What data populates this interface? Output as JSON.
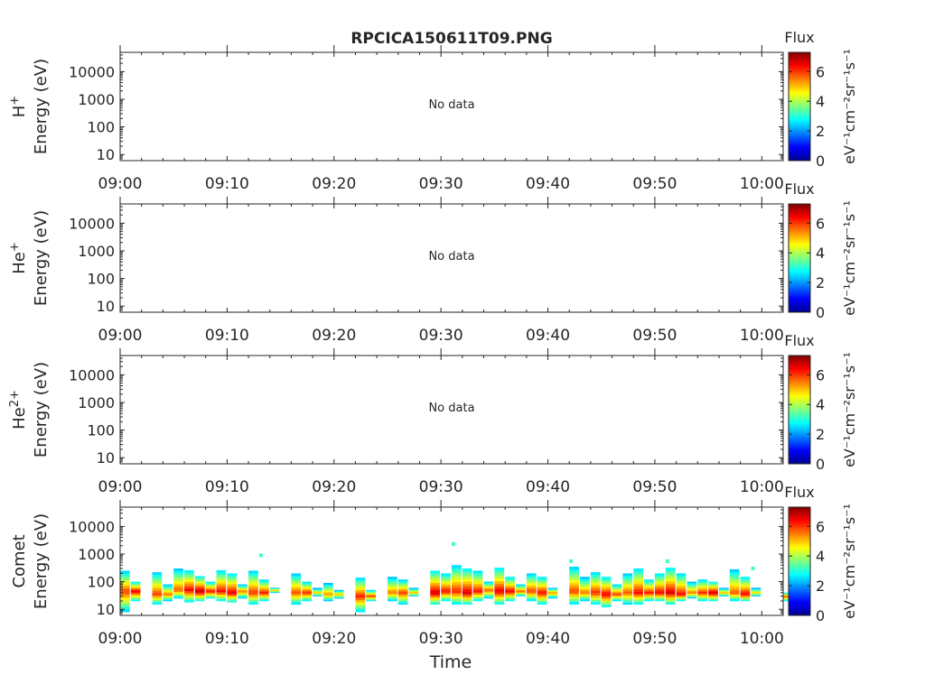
{
  "title": "RPCICA150611T09.PNG",
  "no_data_label": "No data",
  "xlabel": "Time",
  "colorbar": {
    "label": "Flux",
    "ticks": [
      "0",
      "2",
      "4",
      "6"
    ],
    "range": [
      0,
      7.3
    ]
  },
  "chart_data": [
    {
      "type": "heatmap",
      "title": "RPCICA150611T09.PNG",
      "species": "H",
      "species_sup": "+",
      "ylabel": "Energy (eV)",
      "yscale": "log",
      "ylim": [
        6,
        50000
      ],
      "yticks": [
        "10",
        "100",
        "1000",
        "10000"
      ],
      "xticks": [
        "09:00",
        "09:10",
        "09:20",
        "09:30",
        "09:40",
        "09:50",
        "10:00"
      ],
      "xlim": [
        "09:00",
        "10:02"
      ],
      "status": "No data",
      "colorbar_label": "eV⁻¹cm⁻²sr⁻¹s⁻¹",
      "columns": []
    },
    {
      "type": "heatmap",
      "species": "He",
      "species_sup": "+",
      "ylabel": "Energy (eV)",
      "yscale": "log",
      "ylim": [
        6,
        50000
      ],
      "yticks": [
        "10",
        "100",
        "1000",
        "10000"
      ],
      "xticks": [
        "09:00",
        "09:10",
        "09:20",
        "09:30",
        "09:40",
        "09:50",
        "10:00"
      ],
      "xlim": [
        "09:00",
        "10:02"
      ],
      "status": "No data",
      "colorbar_label": "eV⁻¹cm⁻²sr⁻¹s⁻¹",
      "columns": []
    },
    {
      "type": "heatmap",
      "species": "He",
      "species_sup": "2+",
      "ylabel": "Energy (eV)",
      "yscale": "log",
      "ylim": [
        6,
        50000
      ],
      "yticks": [
        "10",
        "100",
        "1000",
        "10000"
      ],
      "xticks": [
        "09:00",
        "09:10",
        "09:20",
        "09:30",
        "09:40",
        "09:50",
        "10:00"
      ],
      "xlim": [
        "09:00",
        "10:02"
      ],
      "status": "No data",
      "colorbar_label": "eV⁻¹cm⁻²sr⁻¹s⁻¹",
      "columns": []
    },
    {
      "type": "heatmap",
      "species": "Comet",
      "species_sup": "",
      "ylabel": "Energy (eV)",
      "yscale": "log",
      "ylim": [
        6,
        50000
      ],
      "yticks": [
        "10",
        "100",
        "1000",
        "10000"
      ],
      "xticks": [
        "09:00",
        "09:10",
        "09:20",
        "09:30",
        "09:40",
        "09:50",
        "10:00"
      ],
      "xlim": [
        "09:00",
        "10:02"
      ],
      "status": "",
      "colorbar_label": "eV⁻¹cm⁻²sr⁻¹s⁻¹",
      "columns": [
        {
          "t": "09:00",
          "e_min": 8,
          "e_max": 250,
          "peak": 45,
          "flux": 6.0
        },
        {
          "t": "09:01",
          "e_min": 20,
          "e_max": 100,
          "peak": 45,
          "flux": 6.6
        },
        {
          "t": "09:03",
          "e_min": 15,
          "e_max": 220,
          "peak": 35,
          "flux": 6.0
        },
        {
          "t": "09:04",
          "e_min": 20,
          "e_max": 80,
          "peak": 35,
          "flux": 5.6
        },
        {
          "t": "09:05",
          "e_min": 25,
          "e_max": 300,
          "peak": 50,
          "flux": 5.8
        },
        {
          "t": "09:06",
          "e_min": 18,
          "e_max": 260,
          "peak": 50,
          "flux": 6.5
        },
        {
          "t": "09:07",
          "e_min": 20,
          "e_max": 160,
          "peak": 45,
          "flux": 6.9
        },
        {
          "t": "09:08",
          "e_min": 25,
          "e_max": 100,
          "peak": 45,
          "flux": 6.4
        },
        {
          "t": "09:09",
          "e_min": 20,
          "e_max": 260,
          "peak": 45,
          "flux": 6.4
        },
        {
          "t": "09:10",
          "e_min": 18,
          "e_max": 200,
          "peak": 40,
          "flux": 6.6
        },
        {
          "t": "09:11",
          "e_min": 25,
          "e_max": 80,
          "peak": 45,
          "flux": 5.6
        },
        {
          "t": "09:12",
          "e_min": 15,
          "e_max": 250,
          "peak": 40,
          "flux": 6.1
        },
        {
          "t": "09:13",
          "e_min": 20,
          "e_max": 120,
          "peak": 40,
          "flux": 6.3
        },
        {
          "t": "09:14",
          "e_min": 40,
          "e_max": 60,
          "peak": 50,
          "flux": 5.2
        },
        {
          "t": "09:16",
          "e_min": 15,
          "e_max": 200,
          "peak": 40,
          "flux": 5.9
        },
        {
          "t": "09:17",
          "e_min": 20,
          "e_max": 100,
          "peak": 40,
          "flux": 6.2
        },
        {
          "t": "09:18",
          "e_min": 30,
          "e_max": 60,
          "peak": 40,
          "flux": 5.0
        },
        {
          "t": "09:19",
          "e_min": 20,
          "e_max": 90,
          "peak": 35,
          "flux": 5.4
        },
        {
          "t": "09:20",
          "e_min": 25,
          "e_max": 50,
          "peak": 35,
          "flux": 5.2
        },
        {
          "t": "09:22",
          "e_min": 8,
          "e_max": 140,
          "peak": 30,
          "flux": 6.2
        },
        {
          "t": "09:23",
          "e_min": 20,
          "e_max": 50,
          "peak": 30,
          "flux": 6.0
        },
        {
          "t": "09:25",
          "e_min": 20,
          "e_max": 150,
          "peak": 40,
          "flux": 5.6
        },
        {
          "t": "09:26",
          "e_min": 15,
          "e_max": 120,
          "peak": 40,
          "flux": 6.0
        },
        {
          "t": "09:27",
          "e_min": 30,
          "e_max": 60,
          "peak": 40,
          "flux": 5.2
        },
        {
          "t": "09:29",
          "e_min": 15,
          "e_max": 250,
          "peak": 40,
          "flux": 6.8
        },
        {
          "t": "09:30",
          "e_min": 20,
          "e_max": 200,
          "peak": 45,
          "flux": 6.4
        },
        {
          "t": "09:31",
          "e_min": 15,
          "e_max": 400,
          "peak": 45,
          "flux": 6.2
        },
        {
          "t": "09:32",
          "e_min": 15,
          "e_max": 300,
          "peak": 40,
          "flux": 6.7
        },
        {
          "t": "09:33",
          "e_min": 20,
          "e_max": 250,
          "peak": 45,
          "flux": 6.3
        },
        {
          "t": "09:34",
          "e_min": 25,
          "e_max": 100,
          "peak": 50,
          "flux": 5.8
        },
        {
          "t": "09:35",
          "e_min": 15,
          "e_max": 320,
          "peak": 45,
          "flux": 6.6
        },
        {
          "t": "09:36",
          "e_min": 20,
          "e_max": 150,
          "peak": 45,
          "flux": 6.5
        },
        {
          "t": "09:37",
          "e_min": 30,
          "e_max": 80,
          "peak": 45,
          "flux": 5.8
        },
        {
          "t": "09:38",
          "e_min": 20,
          "e_max": 200,
          "peak": 45,
          "flux": 6.0
        },
        {
          "t": "09:39",
          "e_min": 15,
          "e_max": 150,
          "peak": 40,
          "flux": 6.4
        },
        {
          "t": "09:40",
          "e_min": 25,
          "e_max": 60,
          "peak": 40,
          "flux": 5.4
        },
        {
          "t": "09:42",
          "e_min": 15,
          "e_max": 350,
          "peak": 45,
          "flux": 6.0
        },
        {
          "t": "09:43",
          "e_min": 20,
          "e_max": 150,
          "peak": 40,
          "flux": 5.6
        },
        {
          "t": "09:44",
          "e_min": 15,
          "e_max": 220,
          "peak": 40,
          "flux": 6.2
        },
        {
          "t": "09:45",
          "e_min": 12,
          "e_max": 150,
          "peak": 35,
          "flux": 6.5
        },
        {
          "t": "09:46",
          "e_min": 20,
          "e_max": 80,
          "peak": 35,
          "flux": 6.0
        },
        {
          "t": "09:47",
          "e_min": 15,
          "e_max": 200,
          "peak": 40,
          "flux": 5.8
        },
        {
          "t": "09:48",
          "e_min": 15,
          "e_max": 300,
          "peak": 40,
          "flux": 6.4
        },
        {
          "t": "09:49",
          "e_min": 20,
          "e_max": 120,
          "peak": 40,
          "flux": 6.3
        },
        {
          "t": "09:50",
          "e_min": 20,
          "e_max": 200,
          "peak": 40,
          "flux": 6.5
        },
        {
          "t": "09:51",
          "e_min": 15,
          "e_max": 320,
          "peak": 40,
          "flux": 6.7
        },
        {
          "t": "09:52",
          "e_min": 20,
          "e_max": 200,
          "peak": 35,
          "flux": 6.4
        },
        {
          "t": "09:53",
          "e_min": 25,
          "e_max": 100,
          "peak": 40,
          "flux": 5.6
        },
        {
          "t": "09:54",
          "e_min": 20,
          "e_max": 120,
          "peak": 40,
          "flux": 6.2
        },
        {
          "t": "09:55",
          "e_min": 20,
          "e_max": 100,
          "peak": 40,
          "flux": 6.8
        },
        {
          "t": "09:56",
          "e_min": 30,
          "e_max": 60,
          "peak": 40,
          "flux": 5.2
        },
        {
          "t": "09:57",
          "e_min": 20,
          "e_max": 280,
          "peak": 40,
          "flux": 5.8
        },
        {
          "t": "09:58",
          "e_min": 20,
          "e_max": 150,
          "peak": 35,
          "flux": 6.5
        },
        {
          "t": "09:59",
          "e_min": 30,
          "e_max": 60,
          "peak": 40,
          "flux": 5.0
        },
        {
          "t": "10:02",
          "e_min": 20,
          "e_max": 40,
          "peak": 30,
          "flux": 6.0
        }
      ],
      "isolated_points": [
        {
          "t": "09:13",
          "e": 900,
          "flux": 3.2
        },
        {
          "t": "09:31",
          "e": 2300,
          "flux": 3.2
        },
        {
          "t": "09:42",
          "e": 550,
          "flux": 3.2
        },
        {
          "t": "09:51",
          "e": 550,
          "flux": 3.2
        },
        {
          "t": "09:59",
          "e": 300,
          "flux": 3.2
        }
      ]
    }
  ]
}
